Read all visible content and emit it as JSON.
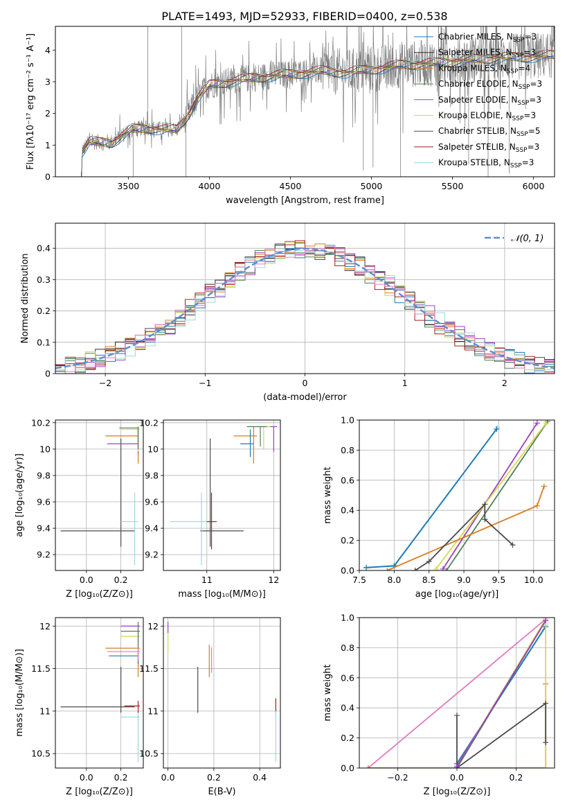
{
  "figure_title": "PLATE=1493, MJD=52933, FIBERID=0400, z=0.538",
  "colors": {
    "Chabrier MILES": "#1f77b4",
    "Salpeter MILES": "#2a2a2a",
    "Kroupa MILES": "#d97a1e",
    "Chabrier ELODIE": "#4f7f58",
    "Salpeter ELODIE": "#9e3fc0",
    "Kroupa ELODIE": "#d6d84a",
    "Chabrier STELIB": "#4a4a4a",
    "Salpeter STELIB": "#b01818",
    "Kroupa STELIB": "#9dd6dc",
    "normal": "#5b8fd4",
    "pink": "#e07bc0"
  },
  "chart_data": [
    {
      "type": "line",
      "xlabel": "wavelength [Angstrom, rest frame]",
      "ylabel": "Flux [fλ10⁻¹⁷ erg cm⁻² s⁻¹ A⁻¹]",
      "xlim": [
        3050,
        6130
      ],
      "ylim": [
        0,
        4.75
      ],
      "xticks": [
        3500,
        4000,
        4500,
        5000,
        5500,
        6000
      ],
      "yticks": [
        0,
        1,
        2,
        3,
        4
      ],
      "legend_position": "top-right",
      "continuum_knots": [
        [
          3210,
          0.0
        ],
        [
          3215,
          0.8
        ],
        [
          3260,
          1.1
        ],
        [
          3400,
          1.1
        ],
        [
          3520,
          1.5
        ],
        [
          3620,
          1.55
        ],
        [
          3700,
          1.5
        ],
        [
          3800,
          1.5
        ],
        [
          3860,
          1.9
        ],
        [
          3930,
          2.5
        ],
        [
          4000,
          2.9
        ],
        [
          4100,
          3.0
        ],
        [
          4300,
          3.15
        ],
        [
          4500,
          3.25
        ],
        [
          4700,
          3.35
        ],
        [
          4850,
          3.3
        ],
        [
          5000,
          3.4
        ],
        [
          5200,
          3.55
        ],
        [
          5400,
          3.6
        ],
        [
          5700,
          3.75
        ],
        [
          6000,
          3.8
        ],
        [
          6130,
          3.85
        ]
      ],
      "data_spectrum_noise_level": 0.4,
      "series": [
        {
          "name": "Chabrier MILES",
          "nssp": "3"
        },
        {
          "name": "Salpeter MILES",
          "nssp": "3"
        },
        {
          "name": "Kroupa MILES",
          "nssp": "4"
        },
        {
          "name": "Chabrier ELODIE",
          "nssp": "3"
        },
        {
          "name": "Salpeter ELODIE",
          "nssp": "3"
        },
        {
          "name": "Kroupa ELODIE",
          "nssp": "3"
        },
        {
          "name": "Chabrier STELIB",
          "nssp": "5"
        },
        {
          "name": "Salpeter STELIB",
          "nssp": "3"
        },
        {
          "name": "Kroupa STELIB",
          "nssp": "3"
        }
      ]
    },
    {
      "type": "histogram",
      "xlabel": "(data-model)/error",
      "ylabel": "Normed distribution",
      "xlim": [
        -2.5,
        2.5
      ],
      "ylim": [
        0,
        0.48
      ],
      "xticks": [
        -2,
        -1,
        0,
        1,
        2
      ],
      "xtick_labels": [
        "−2",
        "−1",
        "0",
        "1",
        "2"
      ],
      "yticks": [
        0,
        0.1,
        0.2,
        0.3,
        0.4
      ],
      "bin_width": 0.1,
      "legend_entry": "𝒩(0, 1)",
      "series_offsets": [
        0.0,
        0.015,
        -0.01,
        0.02,
        -0.02,
        0.01,
        -0.015,
        0.025,
        -0.025
      ]
    },
    {
      "type": "errorbar",
      "xlabel": "Z [log₁₀(Z/Z⊙)]",
      "ylabel": "age  [log₁₀(age/yr)]",
      "xlim": [
        -0.18,
        0.33
      ],
      "ylim": [
        9.08,
        10.22
      ],
      "xticks": [
        0.0,
        0.2
      ],
      "xtick_labels": [
        "0.0",
        "0.2"
      ],
      "yticks": [
        9.2,
        9.4,
        9.6,
        9.8,
        10.0,
        10.2
      ],
      "points": [
        {
          "c": "Chabrier STELIB",
          "x": 0.2,
          "y": 9.38,
          "xl": -0.15,
          "xh": 0.28,
          "yl": 9.26,
          "yh": 10.08
        },
        {
          "c": "Kroupa STELIB",
          "x": 0.28,
          "y": 9.45,
          "xl": 0.2,
          "xh": 0.3,
          "yl": 9.12,
          "yh": 9.67
        },
        {
          "c": "Kroupa MILES",
          "x": 0.3,
          "y": 10.1,
          "xl": 0.11,
          "xh": 0.3,
          "yl": 9.89,
          "yh": 10.17
        },
        {
          "c": "Salpeter ELODIE",
          "x": 0.3,
          "y": 10.04,
          "xl": 0.12,
          "xh": 0.3,
          "yl": 9.96,
          "yh": 10.17
        },
        {
          "c": "Kroupa ELODIE",
          "x": 0.3,
          "y": 10.15,
          "xl": 0.2,
          "xh": 0.31,
          "yl": 9.98,
          "yh": 10.17
        },
        {
          "c": "Chabrier ELODIE",
          "x": 0.3,
          "y": 10.16,
          "xl": 0.19,
          "xh": 0.3,
          "yl": 10.0,
          "yh": 10.17
        }
      ]
    },
    {
      "type": "errorbar",
      "xlabel": "mass [log₁₀(M/M⊙)]",
      "ylabel": "",
      "xlim": [
        10.35,
        12.1
      ],
      "ylim": [
        9.08,
        10.22
      ],
      "xticks": [
        11,
        12
      ],
      "xtick_labels": [
        "11",
        "12"
      ],
      "yticks": [
        9.2,
        9.4,
        9.6,
        9.8,
        10.0,
        10.2
      ],
      "points": [
        {
          "c": "Chabrier STELIB",
          "x": 11.05,
          "y": 9.38,
          "xl": 10.9,
          "xh": 11.55,
          "yl": 9.26,
          "yh": 10.08
        },
        {
          "c": "Kroupa STELIB",
          "x": 10.92,
          "y": 9.45,
          "xl": 10.45,
          "xh": 11.05,
          "yl": 9.12,
          "yh": 9.67
        },
        {
          "c": "Salpeter STELIB",
          "x": 11.07,
          "y": 9.45,
          "xl": 11.0,
          "xh": 11.15,
          "yl": 9.24,
          "yh": 9.67
        },
        {
          "c": "Kroupa MILES",
          "x": 11.7,
          "y": 10.1,
          "xl": 11.4,
          "xh": 11.75,
          "yl": 9.89,
          "yh": 10.17
        },
        {
          "c": "Chabrier MILES",
          "x": 11.65,
          "y": 10.04,
          "xl": 11.5,
          "xh": 11.7,
          "yl": 9.94,
          "yh": 10.15
        },
        {
          "c": "Salpeter ELODIE",
          "x": 12.0,
          "y": 10.17,
          "xl": 11.92,
          "xh": 12.05,
          "yl": 9.98,
          "yh": 10.17
        },
        {
          "c": "Kroupa ELODIE",
          "x": 11.85,
          "y": 10.17,
          "xl": 11.6,
          "xh": 11.95,
          "yl": 10.0,
          "yh": 10.17
        },
        {
          "c": "Chabrier ELODIE",
          "x": 11.8,
          "y": 10.17,
          "xl": 11.6,
          "xh": 11.9,
          "yl": 10.02,
          "yh": 10.17
        }
      ]
    },
    {
      "type": "line",
      "xlabel": "age  [log₁₀(age/yr)]",
      "ylabel": "mass weight",
      "xlim": [
        7.5,
        10.3
      ],
      "ylim": [
        0,
        1.0
      ],
      "xticks": [
        7.5,
        8.0,
        8.5,
        9.0,
        9.5,
        10.0
      ],
      "xtick_labels": [
        "7.5",
        "8.0",
        "8.5",
        "9.0",
        "9.5",
        "10.0"
      ],
      "yticks": [
        0,
        0.2,
        0.4,
        0.6,
        0.8,
        1.0
      ],
      "yticklabels": [
        "0.0",
        "0.2",
        "0.4",
        "0.6",
        "0.8",
        "1.0"
      ],
      "series": [
        {
          "c": "Kroupa STELIB",
          "points": [
            [
              7.6,
              0.015
            ],
            [
              8.0,
              0.035
            ],
            [
              9.48,
              0.95
            ]
          ]
        },
        {
          "c": "Chabrier MILES",
          "points": [
            [
              7.6,
              0.02
            ],
            [
              8.0,
              0.03
            ],
            [
              9.47,
              0.94
            ]
          ]
        },
        {
          "c": "Salpeter ELODIE",
          "points": [
            [
              8.7,
              0.01
            ],
            [
              10.05,
              0.98
            ]
          ]
        },
        {
          "c": "Chabrier ELODIE",
          "points": [
            [
              8.75,
              0.0
            ],
            [
              10.2,
              0.99
            ]
          ]
        },
        {
          "c": "Kroupa ELODIE",
          "points": [
            [
              8.6,
              0.01
            ],
            [
              10.18,
              0.98
            ]
          ]
        },
        {
          "c": "Kroupa MILES",
          "points": [
            [
              7.9,
              0.0
            ],
            [
              10.05,
              0.43
            ],
            [
              10.15,
              0.56
            ]
          ]
        },
        {
          "c": "Chabrier STELIB",
          "points": [
            [
              8.3,
              0.0
            ],
            [
              8.5,
              0.06
            ],
            [
              9.3,
              0.44
            ],
            [
              9.3,
              0.34
            ],
            [
              9.7,
              0.17
            ]
          ]
        }
      ]
    },
    {
      "type": "errorbar",
      "xlabel": "Z [log₁₀(Z/Z⊙)]",
      "ylabel": "mass [log₁₀(M/M⊙)]",
      "xlim": [
        -0.18,
        0.33
      ],
      "ylim": [
        10.33,
        12.1
      ],
      "xticks": [
        0.0,
        0.2
      ],
      "xtick_labels": [
        "0.0",
        "0.2"
      ],
      "yticks": [
        10.5,
        11.0,
        11.5,
        12.0
      ],
      "points": [
        {
          "c": "Chabrier STELIB",
          "x": 0.2,
          "y": 11.05,
          "xl": -0.15,
          "xh": 0.28,
          "yl": 10.98,
          "yh": 11.52
        },
        {
          "c": "Kroupa STELIB",
          "x": 0.3,
          "y": 10.93,
          "xl": 0.2,
          "xh": 0.31,
          "yl": 10.4,
          "yh": 11.0
        },
        {
          "c": "Salpeter STELIB",
          "x": 0.3,
          "y": 11.06,
          "xl": 0.22,
          "xh": 0.31,
          "yl": 10.98,
          "yh": 11.12
        },
        {
          "c": "Kroupa MILES",
          "x": 0.3,
          "y": 11.74,
          "xl": 0.11,
          "xh": 0.31,
          "yl": 11.4,
          "yh": 11.78
        },
        {
          "c": "Chabrier MILES",
          "x": 0.3,
          "y": 11.65,
          "xl": 0.13,
          "xh": 0.3,
          "yl": 11.55,
          "yh": 11.7
        },
        {
          "c": "Salpeter ELODIE",
          "x": 0.3,
          "y": 12.0,
          "xl": 0.2,
          "xh": 0.31,
          "yl": 11.8,
          "yh": 12.05
        },
        {
          "c": "Kroupa ELODIE",
          "x": 0.3,
          "y": 11.88,
          "xl": 0.2,
          "xh": 0.31,
          "yl": 11.6,
          "yh": 11.95
        },
        {
          "c": "Chabrier ELODIE",
          "x": 0.3,
          "y": 11.94,
          "xl": 0.2,
          "xh": 0.31,
          "yl": 11.7,
          "yh": 12.0
        },
        {
          "c": "pink",
          "x": 0.3,
          "y": 11.7,
          "xl": 0.12,
          "xh": 0.31,
          "yl": 11.6,
          "yh": 11.75
        }
      ]
    },
    {
      "type": "errorbar",
      "xlabel": "E(B-V)",
      "ylabel": "",
      "xlim": [
        -0.02,
        0.49
      ],
      "ylim": [
        10.33,
        12.1
      ],
      "xticks": [
        0.0,
        0.2,
        0.4
      ],
      "xtick_labels": [
        "0.0",
        "0.2",
        "0.4"
      ],
      "yticks": [
        10.5,
        11.0,
        11.5,
        12.0
      ],
      "points": [
        {
          "c": "Chabrier STELIB",
          "x": 0.13,
          "y": 11.25,
          "yl": 10.98,
          "yh": 11.52
        },
        {
          "c": "Kroupa ELODIE",
          "x": 0.0,
          "y": 11.85,
          "yl": 11.7,
          "yh": 11.95
        },
        {
          "c": "Salpeter ELODIE",
          "x": 0.0,
          "y": 12.0,
          "yl": 11.92,
          "yh": 12.05
        },
        {
          "c": "Kroupa MILES",
          "x": 0.18,
          "y": 11.6,
          "yl": 11.4,
          "yh": 11.78
        },
        {
          "c": "pink",
          "x": 0.19,
          "y": 11.6,
          "yl": 11.45,
          "yh": 11.75
        },
        {
          "c": "Salpeter STELIB",
          "x": 0.47,
          "y": 11.06,
          "yl": 10.98,
          "yh": 11.15
        },
        {
          "c": "Kroupa STELIB",
          "x": 0.47,
          "y": 10.7,
          "yl": 10.4,
          "yh": 11.0
        }
      ]
    },
    {
      "type": "line",
      "xlabel": "Z [log₁₀(Z/Z⊙)]",
      "ylabel": "mass weight",
      "xlim": [
        -0.33,
        0.33
      ],
      "ylim": [
        0,
        1.0
      ],
      "xticks": [
        -0.2,
        0.0,
        0.2
      ],
      "xtick_labels": [
        "−0.2",
        "0.0",
        "0.2"
      ],
      "yticks": [
        0,
        0.2,
        0.4,
        0.6,
        0.8,
        1.0
      ],
      "yticklabels": [
        "0.0",
        "0.2",
        "0.4",
        "0.6",
        "0.8",
        "1.0"
      ],
      "series": [
        {
          "c": "pink",
          "points": [
            [
              -0.3,
              0.0
            ],
            [
              0.3,
              0.99
            ]
          ]
        },
        {
          "c": "Kroupa MILES",
          "points": [
            [
              -0.3,
              0.0
            ],
            [
              0.0,
              0.0
            ],
            [
              0.3,
              0.0
            ],
            [
              0.3,
              0.56
            ]
          ]
        },
        {
          "c": "Kroupa STELIB",
          "points": [
            [
              0.0,
              0.02
            ],
            [
              0.3,
              0.95
            ]
          ]
        },
        {
          "c": "Chabrier MILES",
          "points": [
            [
              0.0,
              0.03
            ],
            [
              0.3,
              0.94
            ]
          ]
        },
        {
          "c": "Chabrier ELODIE",
          "points": [
            [
              0.0,
              0.0
            ],
            [
              0.3,
              0.98
            ]
          ]
        },
        {
          "c": "Kroupa ELODIE",
          "points": [
            [
              0.0,
              0.01
            ],
            [
              0.3,
              0.99
            ],
            [
              0.3,
              0.0
            ]
          ]
        },
        {
          "c": "Chabrier STELIB",
          "points": [
            [
              0.0,
              0.0
            ],
            [
              0.0,
              0.35
            ],
            [
              0.0,
              0.0
            ],
            [
              0.3,
              0.43
            ],
            [
              0.3,
              0.17
            ]
          ]
        },
        {
          "c": "Salpeter ELODIE",
          "points": [
            [
              0.0,
              0.01
            ],
            [
              0.3,
              0.98
            ]
          ]
        }
      ]
    }
  ]
}
